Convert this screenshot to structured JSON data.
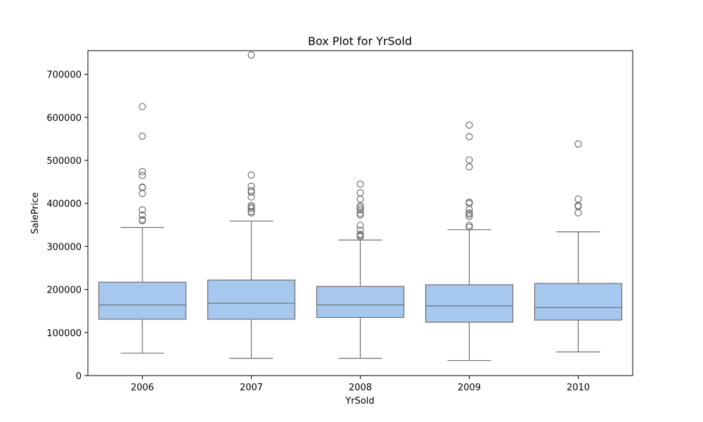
{
  "chart_data": {
    "type": "box",
    "title": "Box Plot for YrSold",
    "xlabel": "YrSold",
    "ylabel": "SalePrice",
    "categories": [
      "2006",
      "2007",
      "2008",
      "2009",
      "2010"
    ],
    "ylim": [
      0,
      755000
    ],
    "yticks": [
      0,
      100000,
      200000,
      300000,
      400000,
      500000,
      600000,
      700000
    ],
    "ytick_labels": [
      "0",
      "100000",
      "200000",
      "300000",
      "400000",
      "500000",
      "600000",
      "700000"
    ],
    "grid": false,
    "box_color": "#a6c8ef",
    "line_color": "#6e6e6e",
    "boxes": [
      {
        "category": "2006",
        "whisker_low": 52000,
        "q1": 131000,
        "median": 164000,
        "q3": 217000,
        "whisker_high": 344000,
        "outliers": [
          360000,
          362000,
          373000,
          385000,
          423000,
          437000,
          438000,
          465000,
          474000,
          556000,
          625000
        ]
      },
      {
        "category": "2007",
        "whisker_low": 40000,
        "q1": 131000,
        "median": 168000,
        "q3": 222000,
        "whisker_high": 359000,
        "outliers": [
          378000,
          381000,
          388000,
          392000,
          395000,
          415000,
          426000,
          430000,
          440000,
          466000,
          745000
        ]
      },
      {
        "category": "2008",
        "whisker_low": 40000,
        "q1": 135000,
        "median": 164000,
        "q3": 207000,
        "whisker_high": 315000,
        "outliers": [
          323000,
          326000,
          328000,
          338000,
          349000,
          373000,
          377000,
          385000,
          390000,
          394000,
          410000,
          425000,
          445000
        ]
      },
      {
        "category": "2009",
        "whisker_low": 35000,
        "q1": 124000,
        "median": 162000,
        "q3": 211000,
        "whisker_high": 339000,
        "outliers": [
          345000,
          349000,
          370000,
          375000,
          378000,
          386000,
          400000,
          403000,
          485000,
          501000,
          555000,
          582000
        ]
      },
      {
        "category": "2010",
        "whisker_low": 55000,
        "q1": 129000,
        "median": 158000,
        "q3": 214000,
        "whisker_high": 334000,
        "outliers": [
          378000,
          393000,
          395000,
          410000,
          538000
        ]
      }
    ]
  }
}
